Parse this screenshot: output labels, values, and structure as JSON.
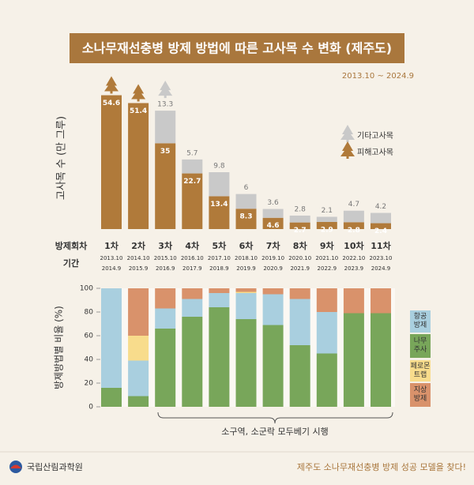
{
  "title": "소나무재선충병 방제 방법에 따른 고사목 수 변화 (제주도)",
  "subtitle": "2013.10 ~ 2024.9",
  "chart_data": [
    {
      "type": "bar",
      "stacked": true,
      "y_label": "고사목 수 (만 그루)",
      "category_label": "방제회차",
      "period_label": "기간",
      "categories": [
        "1차",
        "2차",
        "3차",
        "4차",
        "5차",
        "6차",
        "7차",
        "8차",
        "9차",
        "10차",
        "11차"
      ],
      "periods": [
        [
          "2013.10",
          "2014.9"
        ],
        [
          "2014.10",
          "2015.9"
        ],
        [
          "2015.10",
          "2016.9"
        ],
        [
          "2016.10",
          "2017.9"
        ],
        [
          "2017.10",
          "2018.9"
        ],
        [
          "2018.10",
          "2019.9"
        ],
        [
          "2019.10",
          "2020.9"
        ],
        [
          "2020.10",
          "2021.9"
        ],
        [
          "2021.10",
          "2022.9"
        ],
        [
          "2022.10",
          "2023.9"
        ],
        [
          "2023.10",
          "2024.9"
        ]
      ],
      "ylim": [
        0,
        58
      ],
      "series": [
        {
          "name": "피해고사목",
          "color": "#b07a3a",
          "values": [
            54.6,
            51.4,
            35.0,
            22.7,
            13.4,
            8.3,
            4.6,
            2.7,
            2.9,
            2.8,
            2.4
          ]
        },
        {
          "name": "기타고사목",
          "color": "#c9c9c9",
          "values": [
            null,
            null,
            13.3,
            5.7,
            9.8,
            6.0,
            3.6,
            2.8,
            2.1,
            4.7,
            4.2
          ]
        }
      ]
    },
    {
      "type": "bar",
      "stacked": true,
      "y_label": "방제방법별 비율 (%)",
      "ylim": [
        0,
        100
      ],
      "yticks": [
        0,
        20,
        40,
        60,
        80,
        100
      ],
      "annotation": "소구역, 소군락 모두베기 시행",
      "series": [
        {
          "name": "항공 방제",
          "color": "#a9cfdf",
          "values": [
            84,
            30,
            17,
            15,
            12,
            22,
            26,
            39,
            35,
            0,
            0
          ]
        },
        {
          "name": "나무 주사",
          "color": "#78a65a",
          "values": [
            16,
            9,
            66,
            76,
            84,
            74,
            69,
            52,
            45,
            79,
            79
          ]
        },
        {
          "name": "페로몬 트랩",
          "color": "#f8dc8c",
          "values": [
            0,
            21,
            0,
            0,
            0,
            1,
            0,
            0,
            0,
            0,
            0
          ]
        },
        {
          "name": "지상 방제",
          "color": "#d9926b",
          "values": [
            0,
            40,
            17,
            9,
            4,
            3,
            5,
            9,
            20,
            21,
            21
          ]
        }
      ]
    }
  ],
  "footer": {
    "org": "국립산림과학원",
    "tagline": "제주도 소나무재선충병 방제 성공 모델을 찾다!"
  }
}
